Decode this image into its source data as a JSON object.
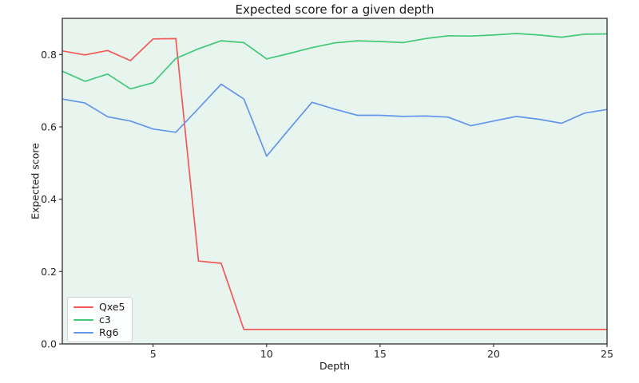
{
  "chart_data": {
    "type": "line",
    "title": "Expected score for a given depth",
    "xlabel": "Depth",
    "ylabel": "Expected score",
    "xlim": [
      1,
      25
    ],
    "ylim": [
      0,
      0.9
    ],
    "grid": false,
    "legend_position": "lower left",
    "plot_background": "#e7f5ee",
    "figure_background": "#ffffff",
    "axis_color": "#3c3c3c",
    "x": [
      1,
      2,
      3,
      4,
      5,
      6,
      7,
      8,
      9,
      10,
      11,
      12,
      13,
      14,
      15,
      16,
      17,
      18,
      19,
      20,
      21,
      22,
      23,
      24,
      25
    ],
    "x_tick_values": [
      5,
      10,
      15,
      20,
      25
    ],
    "x_tick_labels": [
      "5",
      "10",
      "15",
      "20",
      "25"
    ],
    "y_tick_values": [
      0.0,
      0.2,
      0.4,
      0.6,
      0.8
    ],
    "y_tick_labels": [
      "0.0",
      "0.2",
      "0.4",
      "0.6",
      "0.8"
    ],
    "series": [
      {
        "name": "Qxe5",
        "color": "#f25956",
        "values": [
          0.81,
          0.799,
          0.811,
          0.783,
          0.843,
          0.844,
          0.229,
          0.223,
          0.04,
          0.04,
          0.04,
          0.04,
          0.04,
          0.04,
          0.04,
          0.04,
          0.04,
          0.04,
          0.04,
          0.04,
          0.04,
          0.04,
          0.04,
          0.04,
          0.04
        ]
      },
      {
        "name": "c3",
        "color": "#42c878",
        "values": [
          0.754,
          0.726,
          0.746,
          0.705,
          0.722,
          0.789,
          0.816,
          0.838,
          0.833,
          0.788,
          0.803,
          0.819,
          0.832,
          0.838,
          0.836,
          0.833,
          0.844,
          0.852,
          0.851,
          0.854,
          0.858,
          0.854,
          0.848,
          0.856,
          0.857
        ]
      },
      {
        "name": "Rg6",
        "color": "#6495ed",
        "values": [
          0.677,
          0.666,
          0.628,
          0.616,
          0.594,
          0.585,
          0.651,
          0.718,
          0.677,
          0.519,
          0.594,
          0.668,
          0.649,
          0.632,
          0.632,
          0.629,
          0.63,
          0.627,
          0.603,
          0.616,
          0.629,
          0.621,
          0.61,
          0.638,
          0.648
        ]
      }
    ]
  }
}
